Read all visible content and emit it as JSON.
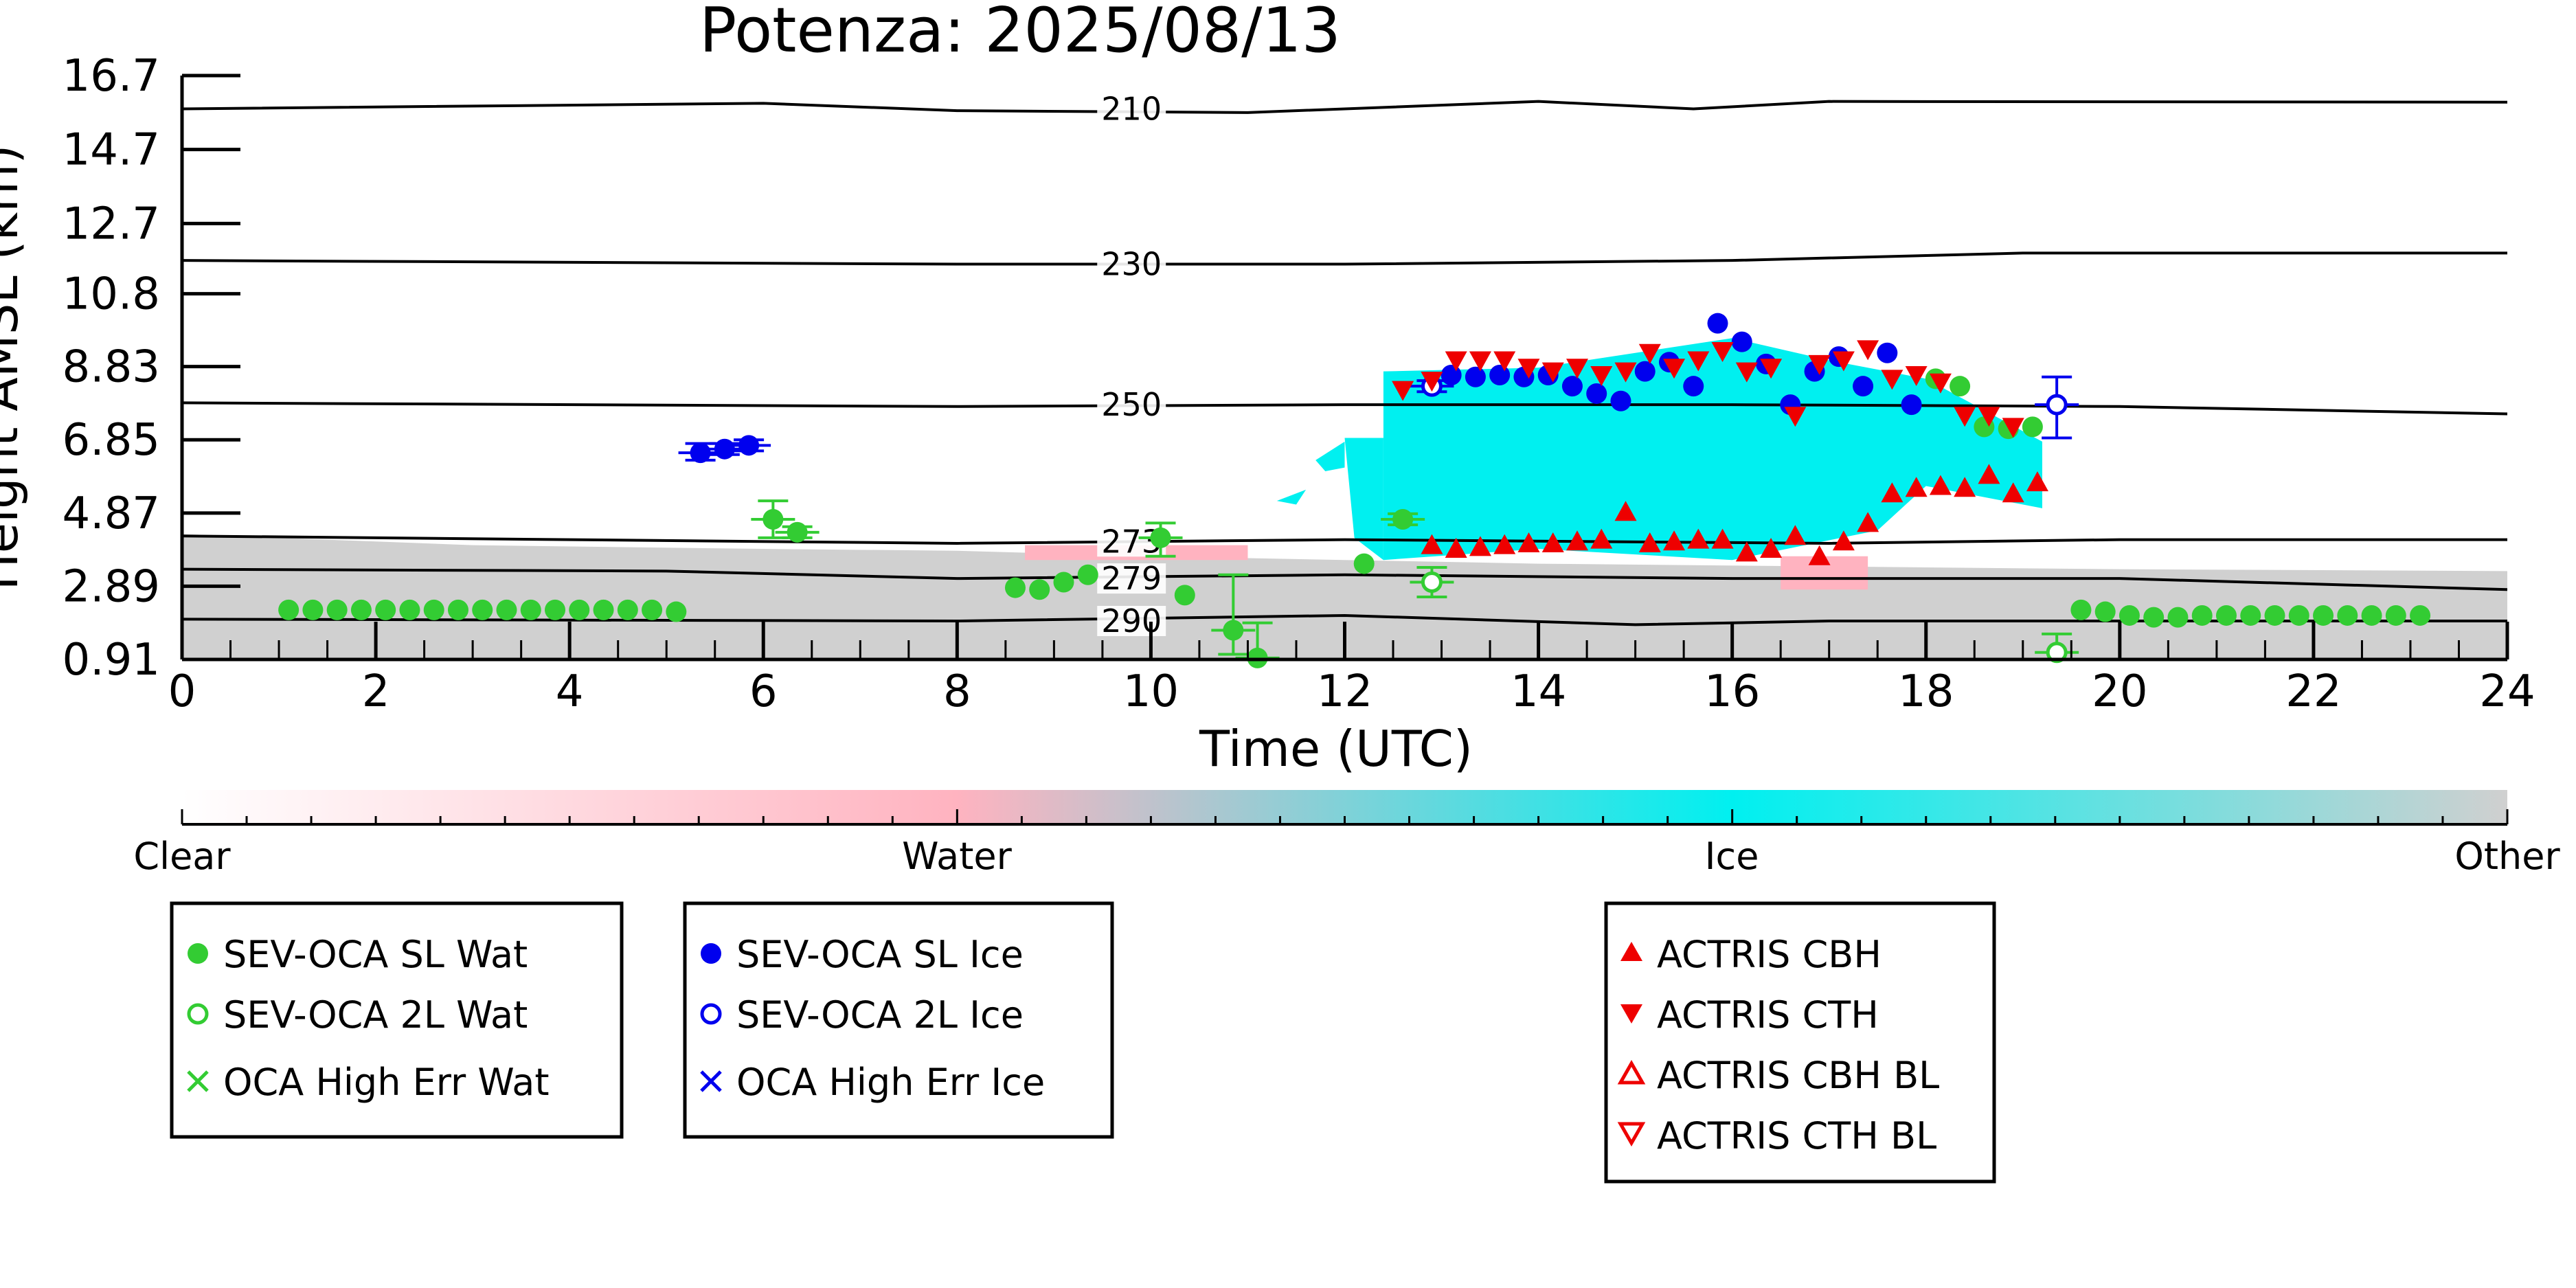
{
  "chart_data": {
    "type": "scatter",
    "title": "Potenza: 2025/08/13",
    "xlabel": "Time (UTC)",
    "ylabel": "Height AMSL (km)",
    "xlim": [
      0,
      24
    ],
    "ylim": [
      0.91,
      16.7
    ],
    "x_ticks": [
      "0",
      "2",
      "4",
      "6",
      "8",
      "10",
      "12",
      "14",
      "16",
      "18",
      "20",
      "22",
      "24"
    ],
    "y_ticks": [
      "0.91",
      "2.89",
      "4.87",
      "6.85",
      "8.83",
      "10.8",
      "12.7",
      "14.7",
      "16.7"
    ],
    "grid": false,
    "colors": {
      "sl_wat": "#33cc33",
      "sl_ice": "#0000ee",
      "actris": "#ee0000",
      "ice": "#00f0f0",
      "other": "#d0d0d0",
      "water": "#ffb3c0"
    },
    "contours": [
      {
        "label": "210",
        "label_x": 9.8,
        "label_y": 15.8,
        "points": [
          [
            0,
            15.8
          ],
          [
            6,
            15.95
          ],
          [
            8,
            15.75
          ],
          [
            11,
            15.7
          ],
          [
            14,
            16.0
          ],
          [
            15.6,
            15.8
          ],
          [
            17,
            16.0
          ],
          [
            24,
            15.98
          ]
        ]
      },
      {
        "label": "230",
        "label_x": 9.8,
        "label_y": 11.6,
        "points": [
          [
            0,
            11.7
          ],
          [
            8,
            11.6
          ],
          [
            12,
            11.6
          ],
          [
            16,
            11.7
          ],
          [
            19,
            11.9
          ],
          [
            24,
            11.9
          ]
        ]
      },
      {
        "label": "250",
        "label_x": 9.8,
        "label_y": 7.8,
        "points": [
          [
            0,
            7.85
          ],
          [
            8,
            7.75
          ],
          [
            12,
            7.8
          ],
          [
            16,
            7.8
          ],
          [
            20,
            7.75
          ],
          [
            24,
            7.55
          ]
        ]
      },
      {
        "label": "273",
        "label_x": 9.8,
        "label_y": 4.1,
        "points": [
          [
            0,
            4.25
          ],
          [
            8,
            4.05
          ],
          [
            12,
            4.15
          ],
          [
            17,
            4.05
          ],
          [
            20,
            4.15
          ],
          [
            24,
            4.15
          ]
        ]
      },
      {
        "label": "279",
        "label_x": 9.8,
        "label_y": 3.1,
        "points": [
          [
            0,
            3.35
          ],
          [
            5,
            3.3
          ],
          [
            8,
            3.1
          ],
          [
            12,
            3.2
          ],
          [
            16,
            3.1
          ],
          [
            20,
            3.1
          ],
          [
            24,
            2.8
          ]
        ]
      },
      {
        "label": "290",
        "label_x": 9.8,
        "label_y": 1.95,
        "points": [
          [
            0,
            2.0
          ],
          [
            8,
            1.95
          ],
          [
            12,
            2.1
          ],
          [
            15,
            1.85
          ],
          [
            17,
            1.95
          ],
          [
            20,
            1.95
          ],
          [
            24,
            1.95
          ]
        ]
      }
    ],
    "regions": [
      {
        "kind": "other",
        "points": [
          [
            0,
            4.3
          ],
          [
            3,
            4.0
          ],
          [
            6,
            3.9
          ],
          [
            8,
            3.85
          ],
          [
            10,
            3.7
          ],
          [
            12,
            3.6
          ],
          [
            14,
            3.5
          ],
          [
            18,
            3.4
          ],
          [
            20,
            3.35
          ],
          [
            24,
            3.3
          ],
          [
            24,
            0.91
          ],
          [
            0,
            0.91
          ]
        ]
      },
      {
        "kind": "ice",
        "points": [
          [
            12.4,
            8.7
          ],
          [
            14,
            8.8
          ],
          [
            15,
            9.2
          ],
          [
            16,
            9.6
          ],
          [
            17,
            9.0
          ],
          [
            18,
            8.5
          ],
          [
            19.2,
            6.8
          ],
          [
            19.2,
            5.0
          ],
          [
            18,
            5.6
          ],
          [
            17.5,
            4.4
          ],
          [
            16,
            3.6
          ],
          [
            14,
            3.9
          ],
          [
            12.4,
            3.6
          ],
          [
            12.4,
            6.9
          ]
        ]
      },
      {
        "kind": "ice",
        "points": [
          [
            12.0,
            6.9
          ],
          [
            12.4,
            6.9
          ],
          [
            12.4,
            3.6
          ],
          [
            12.1,
            4.2
          ]
        ]
      },
      {
        "kind": "ice",
        "points": [
          [
            11.7,
            6.3
          ],
          [
            12.0,
            6.8
          ],
          [
            12.0,
            6.1
          ],
          [
            11.8,
            6.0
          ]
        ]
      },
      {
        "kind": "ice",
        "points": [
          [
            11.3,
            5.2
          ],
          [
            11.6,
            5.5
          ],
          [
            11.5,
            5.1
          ]
        ]
      },
      {
        "kind": "water",
        "points": [
          [
            16.5,
            3.7
          ],
          [
            17.4,
            3.7
          ],
          [
            17.4,
            2.8
          ],
          [
            16.5,
            2.8
          ]
        ]
      },
      {
        "kind": "water",
        "points": [
          [
            8.7,
            4.0
          ],
          [
            11.0,
            4.0
          ],
          [
            11.0,
            3.6
          ],
          [
            8.7,
            3.6
          ]
        ]
      }
    ],
    "series": [
      {
        "name": "SEV-OCA SL Wat",
        "marker": "circle",
        "fill": true,
        "color": "#33cc33",
        "points": [
          [
            1.1,
            2.25
          ],
          [
            1.35,
            2.25
          ],
          [
            1.6,
            2.25
          ],
          [
            1.85,
            2.25
          ],
          [
            2.1,
            2.25
          ],
          [
            2.35,
            2.25
          ],
          [
            2.6,
            2.25
          ],
          [
            2.85,
            2.25
          ],
          [
            3.1,
            2.25
          ],
          [
            3.35,
            2.25
          ],
          [
            3.6,
            2.25
          ],
          [
            3.85,
            2.25
          ],
          [
            4.1,
            2.25
          ],
          [
            4.35,
            2.25
          ],
          [
            4.6,
            2.25
          ],
          [
            4.85,
            2.25
          ],
          [
            5.1,
            2.2
          ],
          [
            6.1,
            4.7
          ],
          [
            6.35,
            4.35
          ],
          [
            8.6,
            2.85
          ],
          [
            8.85,
            2.8
          ],
          [
            9.1,
            3.0
          ],
          [
            9.35,
            3.2
          ],
          [
            10.1,
            4.2
          ],
          [
            10.35,
            2.65
          ],
          [
            10.85,
            1.7
          ],
          [
            11.1,
            0.95
          ],
          [
            12.2,
            3.5
          ],
          [
            12.6,
            4.7
          ],
          [
            18.1,
            8.5
          ],
          [
            18.35,
            8.3
          ],
          [
            18.6,
            7.2
          ],
          [
            18.85,
            7.15
          ],
          [
            19.1,
            7.2
          ],
          [
            19.6,
            2.25
          ],
          [
            19.85,
            2.2
          ],
          [
            20.1,
            2.1
          ],
          [
            20.35,
            2.05
          ],
          [
            20.6,
            2.05
          ],
          [
            20.85,
            2.1
          ],
          [
            21.1,
            2.1
          ],
          [
            21.35,
            2.1
          ],
          [
            21.6,
            2.1
          ],
          [
            21.85,
            2.1
          ],
          [
            22.1,
            2.1
          ],
          [
            22.35,
            2.1
          ],
          [
            22.6,
            2.1
          ],
          [
            22.85,
            2.1
          ],
          [
            23.1,
            2.1
          ]
        ]
      },
      {
        "name": "SEV-OCA 2L Wat",
        "marker": "circle",
        "fill": false,
        "color": "#33cc33",
        "points": [
          [
            12.9,
            3.0
          ],
          [
            19.35,
            1.1
          ]
        ]
      },
      {
        "name": "OCA High Err Wat",
        "marker": "x",
        "fill": false,
        "color": "#33cc33",
        "points": []
      },
      {
        "name": "SEV-OCA SL Ice",
        "marker": "circle",
        "fill": true,
        "color": "#0000ee",
        "points": [
          [
            5.35,
            6.5
          ],
          [
            5.6,
            6.6
          ],
          [
            5.85,
            6.7
          ],
          [
            13.1,
            8.6
          ],
          [
            13.35,
            8.55
          ],
          [
            13.6,
            8.6
          ],
          [
            13.85,
            8.55
          ],
          [
            14.1,
            8.6
          ],
          [
            14.35,
            8.3
          ],
          [
            14.6,
            8.1
          ],
          [
            14.85,
            7.9
          ],
          [
            15.1,
            8.7
          ],
          [
            15.35,
            8.95
          ],
          [
            15.6,
            8.3
          ],
          [
            15.85,
            10.0
          ],
          [
            16.1,
            9.5
          ],
          [
            16.35,
            8.9
          ],
          [
            16.6,
            7.8
          ],
          [
            16.85,
            8.7
          ],
          [
            17.1,
            9.1
          ],
          [
            17.35,
            8.3
          ],
          [
            17.6,
            9.2
          ],
          [
            17.85,
            7.8
          ]
        ]
      },
      {
        "name": "SEV-OCA 2L Ice",
        "marker": "circle",
        "fill": false,
        "color": "#0000ee",
        "points": [
          [
            12.9,
            8.3
          ],
          [
            19.35,
            7.8
          ]
        ]
      },
      {
        "name": "OCA High Err Ice",
        "marker": "x",
        "fill": false,
        "color": "#0000ee",
        "points": []
      },
      {
        "name": "ACTRIS CBH",
        "marker": "triangle-up",
        "fill": true,
        "color": "#ee0000",
        "points": [
          [
            12.9,
            4.0
          ],
          [
            13.15,
            3.9
          ],
          [
            13.4,
            3.95
          ],
          [
            13.65,
            4.0
          ],
          [
            13.9,
            4.05
          ],
          [
            14.15,
            4.05
          ],
          [
            14.4,
            4.1
          ],
          [
            14.65,
            4.15
          ],
          [
            14.9,
            4.9
          ],
          [
            15.15,
            4.05
          ],
          [
            15.4,
            4.1
          ],
          [
            15.65,
            4.15
          ],
          [
            15.9,
            4.15
          ],
          [
            16.15,
            3.8
          ],
          [
            16.4,
            3.9
          ],
          [
            16.65,
            4.25
          ],
          [
            16.9,
            3.7
          ],
          [
            17.15,
            4.1
          ],
          [
            17.4,
            4.6
          ],
          [
            17.65,
            5.4
          ],
          [
            17.9,
            5.55
          ],
          [
            18.15,
            5.6
          ],
          [
            18.4,
            5.55
          ],
          [
            18.65,
            5.9
          ],
          [
            18.9,
            5.4
          ],
          [
            19.15,
            5.7
          ]
        ]
      },
      {
        "name": "ACTRIS CTH",
        "marker": "triangle-down",
        "fill": true,
        "color": "#ee0000",
        "points": [
          [
            12.6,
            8.2
          ],
          [
            12.9,
            8.45
          ],
          [
            13.15,
            9.0
          ],
          [
            13.4,
            9.0
          ],
          [
            13.65,
            9.0
          ],
          [
            13.9,
            8.8
          ],
          [
            14.15,
            8.7
          ],
          [
            14.4,
            8.8
          ],
          [
            14.65,
            8.6
          ],
          [
            14.9,
            8.7
          ],
          [
            15.15,
            9.2
          ],
          [
            15.4,
            8.8
          ],
          [
            15.65,
            9.0
          ],
          [
            15.9,
            9.25
          ],
          [
            16.15,
            8.7
          ],
          [
            16.4,
            8.8
          ],
          [
            16.65,
            7.5
          ],
          [
            16.9,
            8.9
          ],
          [
            17.15,
            9.0
          ],
          [
            17.4,
            9.3
          ],
          [
            17.65,
            8.5
          ],
          [
            17.9,
            8.6
          ],
          [
            18.15,
            8.4
          ],
          [
            18.4,
            7.5
          ],
          [
            18.65,
            7.5
          ],
          [
            18.9,
            7.2
          ]
        ]
      },
      {
        "name": "ACTRIS CBH BL",
        "marker": "triangle-up",
        "fill": false,
        "color": "#ee0000",
        "points": []
      },
      {
        "name": "ACTRIS CTH BL",
        "marker": "triangle-down",
        "fill": false,
        "color": "#ee0000",
        "points": []
      }
    ],
    "errorbars": [
      {
        "x": 5.35,
        "y": 6.5,
        "lo": 6.3,
        "hi": 6.75,
        "color": "#0000ee"
      },
      {
        "x": 5.6,
        "y": 6.6,
        "lo": 6.45,
        "hi": 6.75,
        "color": "#0000ee"
      },
      {
        "x": 5.85,
        "y": 6.7,
        "lo": 6.55,
        "hi": 6.85,
        "color": "#0000ee"
      },
      {
        "x": 6.1,
        "y": 4.7,
        "lo": 4.2,
        "hi": 5.2,
        "color": "#33cc33"
      },
      {
        "x": 6.35,
        "y": 4.35,
        "lo": 4.2,
        "hi": 4.5,
        "color": "#33cc33"
      },
      {
        "x": 10.1,
        "y": 4.2,
        "lo": 3.7,
        "hi": 4.6,
        "color": "#33cc33"
      },
      {
        "x": 10.85,
        "y": 1.7,
        "lo": 1.05,
        "hi": 3.2,
        "color": "#33cc33"
      },
      {
        "x": 11.1,
        "y": 0.95,
        "lo": 0.91,
        "hi": 1.9,
        "color": "#33cc33"
      },
      {
        "x": 12.6,
        "y": 4.7,
        "lo": 4.55,
        "hi": 4.85,
        "color": "#33cc33"
      },
      {
        "x": 12.9,
        "y": 3.0,
        "lo": 2.6,
        "hi": 3.4,
        "color": "#33cc33"
      },
      {
        "x": 19.35,
        "y": 1.1,
        "lo": 0.91,
        "hi": 1.6,
        "color": "#33cc33"
      },
      {
        "x": 19.35,
        "y": 7.8,
        "lo": 6.9,
        "hi": 8.55,
        "color": "#0000ee"
      },
      {
        "x": 12.9,
        "y": 8.3,
        "lo": 8.15,
        "hi": 8.45,
        "color": "#0000ee"
      }
    ],
    "colorbar": {
      "labels": [
        "Clear",
        "Water",
        "Ice",
        "Other"
      ],
      "stops": [
        "#ffffff",
        "#ffb3c0",
        "#00f0f0",
        "#d0d0d0"
      ]
    },
    "legend": {
      "placement": "bottom",
      "groups": [
        [
          "SEV-OCA SL Wat",
          "SEV-OCA 2L Wat",
          "OCA High Err Wat"
        ],
        [
          "SEV-OCA SL Ice",
          "SEV-OCA 2L Ice",
          "OCA High Err Ice"
        ],
        [
          "ACTRIS CBH",
          "ACTRIS CTH",
          "ACTRIS CBH BL",
          "ACTRIS CTH BL"
        ]
      ]
    }
  }
}
